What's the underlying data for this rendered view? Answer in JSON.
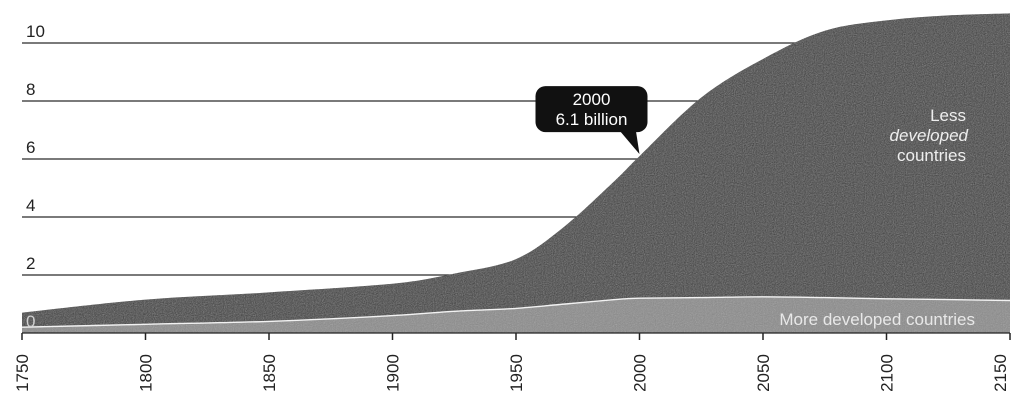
{
  "chart_data": {
    "type": "area",
    "title": "",
    "xlabel": "",
    "ylabel": "",
    "xlim": [
      1750,
      2150
    ],
    "ylim": [
      0,
      11
    ],
    "grid": true,
    "y_ticks": [
      0,
      2,
      4,
      6,
      8,
      10
    ],
    "y_tick_labels": [
      "0",
      "2",
      "4",
      "6",
      "8",
      "10"
    ],
    "x_ticks": [
      1750,
      1800,
      1850,
      1900,
      1950,
      2000,
      2050,
      2100,
      2150
    ],
    "x_tick_labels": [
      "1750",
      "1800",
      "1850",
      "1900",
      "1950",
      "2000",
      "2050",
      "2100",
      "2150"
    ],
    "x": [
      1750,
      1800,
      1850,
      1900,
      1925,
      1950,
      1970,
      1990,
      2000,
      2025,
      2050,
      2075,
      2100,
      2125,
      2150
    ],
    "series": [
      {
        "name": "More developed countries",
        "values": [
          0.2,
          0.3,
          0.4,
          0.6,
          0.75,
          0.85,
          1.0,
          1.15,
          1.2,
          1.22,
          1.25,
          1.22,
          1.18,
          1.15,
          1.12
        ]
      },
      {
        "name": "Less developed countries",
        "values": [
          0.5,
          0.85,
          1.0,
          1.1,
          1.3,
          1.7,
          2.7,
          4.1,
          4.9,
          6.9,
          8.2,
          9.2,
          9.6,
          9.8,
          9.9
        ]
      }
    ],
    "annotation": {
      "year": "2000",
      "text": "6.1 billion",
      "x": 2000,
      "y": 6.1
    },
    "colors": {
      "less_developed": "#3a3a3a",
      "more_developed": "#8a8a8a",
      "boundary": "#f2f2f2",
      "callout": "#111111"
    }
  }
}
